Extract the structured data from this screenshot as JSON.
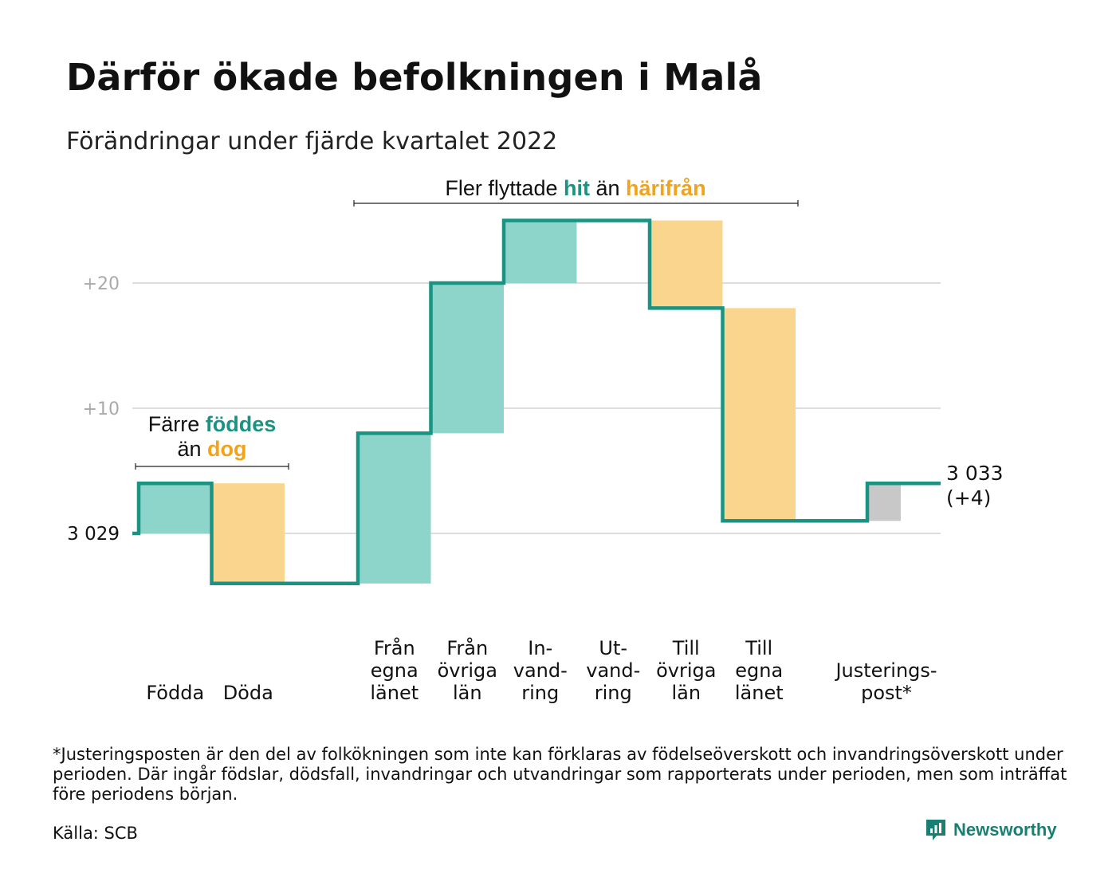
{
  "header": {
    "title": "Därför ökade befolkningen i Malå",
    "subtitle": "Förändringar under fjärde kvartalet 2022"
  },
  "chart_data": {
    "type": "waterfall",
    "start_value": 3029,
    "start_label": "3 029",
    "end_label_lines": [
      "3 033",
      "(+4)"
    ],
    "y_ticks": [
      {
        "value": 10,
        "label": "+10"
      },
      {
        "value": 20,
        "label": "+20"
      }
    ],
    "y_range": [
      -5,
      26
    ],
    "grid": true,
    "steps": [
      {
        "id": "fodda",
        "label_lines": [
          "Födda"
        ],
        "change": 4,
        "kind": "positive"
      },
      {
        "id": "doda",
        "label_lines": [
          "Döda"
        ],
        "change": -8,
        "kind": "negative"
      },
      {
        "id": "fran-egna-lanet",
        "label_lines": [
          "Från",
          "egna",
          "länet"
        ],
        "change": 12,
        "kind": "positive"
      },
      {
        "id": "fran-ovriga-lan",
        "label_lines": [
          "Från",
          "övriga",
          "län"
        ],
        "change": 12,
        "kind": "positive"
      },
      {
        "id": "invandring",
        "label_lines": [
          "In-",
          "vand-",
          "ring"
        ],
        "change": 5,
        "kind": "positive"
      },
      {
        "id": "utvandring",
        "label_lines": [
          "Ut-",
          "vand-",
          "ring"
        ],
        "change": 0,
        "kind": "negative"
      },
      {
        "id": "till-ovriga-lan",
        "label_lines": [
          "Till",
          "övriga",
          "län"
        ],
        "change": -7,
        "kind": "negative"
      },
      {
        "id": "till-egna-lanet",
        "label_lines": [
          "Till",
          "egna",
          "länet"
        ],
        "change": -17,
        "kind": "negative"
      },
      {
        "id": "justeringspost",
        "label_lines": [
          "Justerings-",
          "post*"
        ],
        "change": 3,
        "kind": "adjustment"
      }
    ],
    "annotations": [
      {
        "id": "births-vs-deaths",
        "line1": "Färre",
        "word_pos": "föddes",
        "line2": "än",
        "word_neg": "dog"
      },
      {
        "id": "migration",
        "pre": "Fler flyttade",
        "word_pos": "hit",
        "mid": "än",
        "word_neg": "härifrån"
      }
    ],
    "colors": {
      "positive_fill": "#8dd5cb",
      "negative_fill": "#fad58d",
      "adjustment_fill": "#c8c8c8",
      "line": "#1a9382",
      "positive_text": "#1a9382",
      "negative_text": "#f2a31b",
      "grid": "#dddddd",
      "tick_text": "#aaaaaa"
    }
  },
  "footer": {
    "footnote": "*Justeringsposten är den del av folkökningen som inte kan förklaras av födelseöverskott och invandringsöverskott under perioden. Där ingår födslar, dödsfall, invandringar och utvandringar som rapporterats under perioden, men som inträffat före periodens början.",
    "source": "Källa: SCB",
    "brand": "Newsworthy",
    "brand_icon": "newsworthy-logo-icon"
  }
}
